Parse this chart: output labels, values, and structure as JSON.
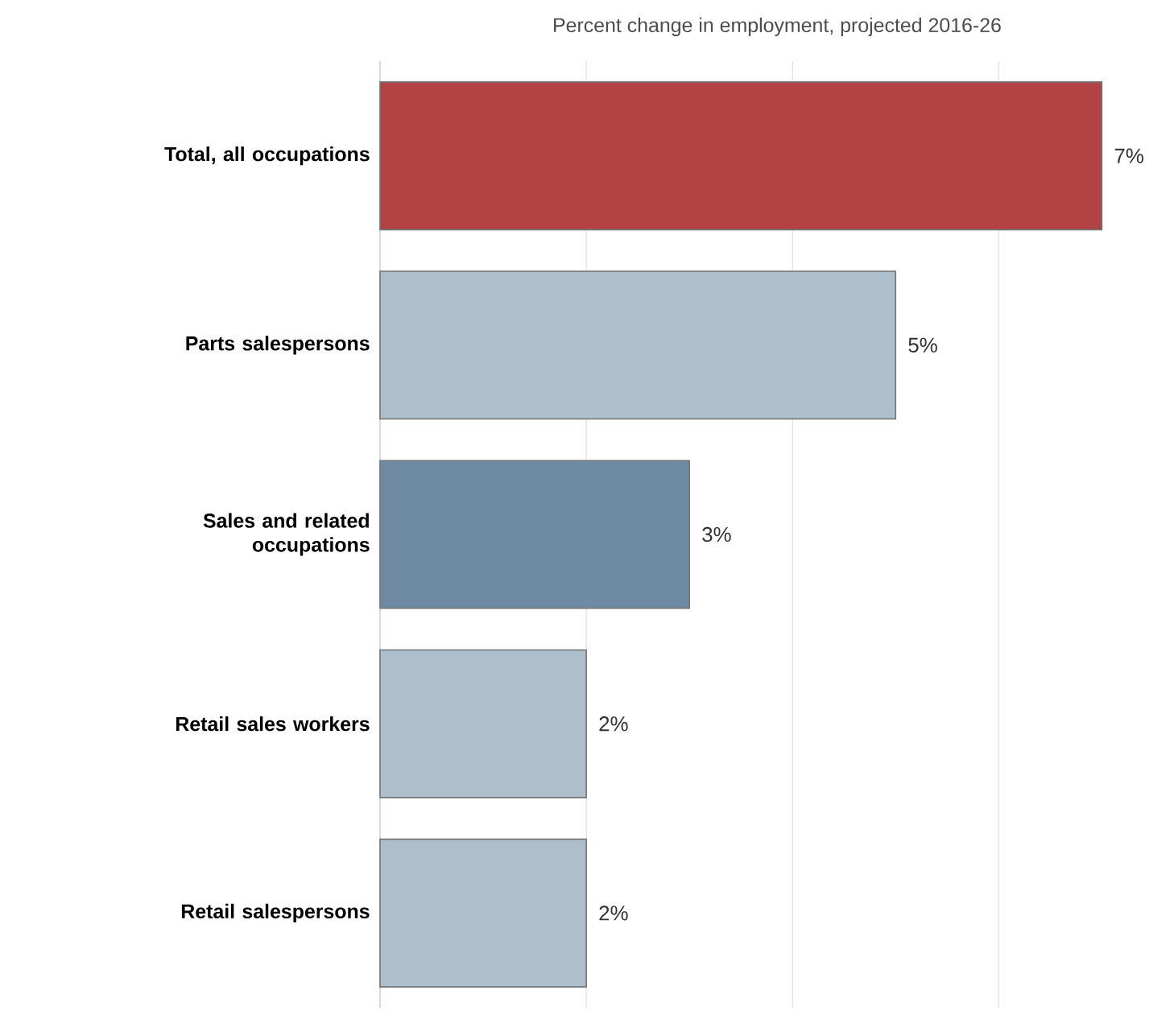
{
  "chart_data": {
    "type": "bar",
    "orientation": "horizontal",
    "title": "Percent change in employment, projected 2016-26",
    "categories": [
      "Total, all occupations",
      "Parts salespersons",
      "Sales and related occupations",
      "Retail sales workers",
      "Retail salespersons"
    ],
    "values": [
      7,
      5,
      3,
      2,
      2
    ],
    "value_labels": [
      "7%",
      "5%",
      "3%",
      "2%",
      "2%"
    ],
    "colors": [
      "#b34244",
      "#adbfcc",
      "#6f8ba3",
      "#adbfcc",
      "#adbfcc"
    ],
    "xticks": [
      {
        "value": 0,
        "label": null
      },
      {
        "value": 2,
        "label": null
      },
      {
        "value": 4,
        "label": null
      },
      {
        "value": 6,
        "label": null
      }
    ],
    "grid": "x",
    "tick_labels": "y"
  }
}
